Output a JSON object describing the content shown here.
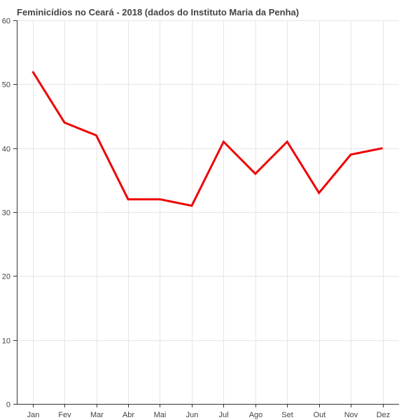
{
  "chart_data": {
    "type": "line",
    "title": "Feminicídios no Ceará - 2018 (dados do Instituto Maria da Penha)",
    "xlabel": "",
    "ylabel": "",
    "categories": [
      "Jan",
      "Fev",
      "Mar",
      "Abr",
      "Mai",
      "Jun",
      "Jul",
      "Ago",
      "Set",
      "Out",
      "Nov",
      "Dez"
    ],
    "series": [
      {
        "values": [
          52,
          44,
          42,
          32,
          32,
          31,
          41,
          36,
          41,
          33,
          39,
          40
        ],
        "color": "#ee0000"
      }
    ],
    "ylim": [
      0,
      60
    ],
    "yticks": [
      "0",
      "10",
      "20",
      "30",
      "40",
      "50",
      "60"
    ],
    "grid": true,
    "legend": "none"
  }
}
